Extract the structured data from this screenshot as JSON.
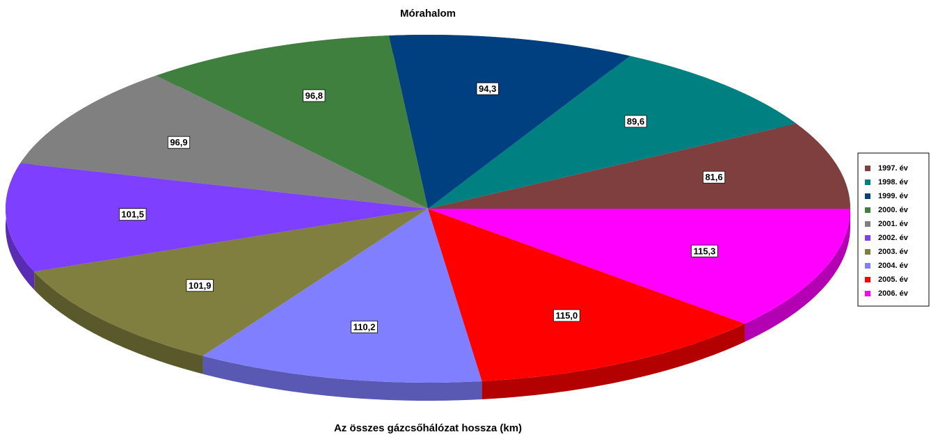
{
  "chart_data": {
    "type": "pie3d",
    "title": "Mórahalom",
    "subtitle": "Az összes gázcsőhálózat hossza (km)",
    "categories": [
      "1997. év",
      "1998. év",
      "1999. év",
      "2000. év",
      "2001. év",
      "2002. év",
      "2003. év",
      "2004. év",
      "2005. év",
      "2006. év"
    ],
    "values": [
      81.6,
      89.6,
      94.3,
      96.8,
      96.9,
      101.5,
      101.9,
      110.2,
      115.0,
      115.3
    ],
    "value_labels": [
      "81,6",
      "89,6",
      "94,3",
      "96,8",
      "96,9",
      "101,5",
      "101,9",
      "110,2",
      "115,0",
      "115,3"
    ],
    "colors": [
      "#803f3f",
      "#008080",
      "#003f80",
      "#3f803f",
      "#808080",
      "#7f3fff",
      "#807f3f",
      "#7f7fff",
      "#ff0000",
      "#ff00ff"
    ],
    "legend": "right"
  }
}
